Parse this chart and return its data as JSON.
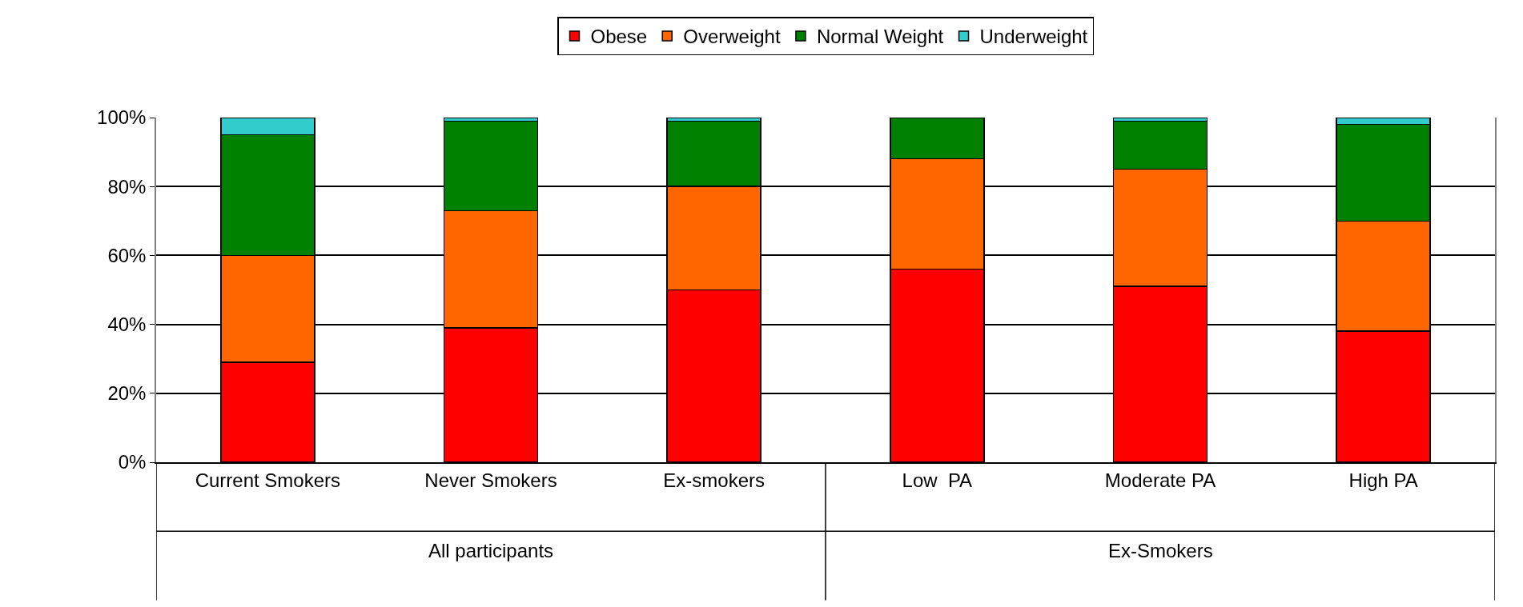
{
  "chart_data": {
    "type": "bar",
    "stacked": true,
    "categories": [
      "Current Smokers",
      "Never Smokers",
      "Ex-smokers",
      "Low  PA",
      "Moderate PA",
      "High PA"
    ],
    "series": [
      {
        "name": "Obese",
        "color": "#ff0000",
        "values": [
          29,
          39,
          50,
          56,
          51,
          38
        ]
      },
      {
        "name": "Overweight",
        "color": "#ff6600",
        "values": [
          31,
          34,
          30,
          32,
          34,
          32
        ]
      },
      {
        "name": "Normal Weight",
        "color": "#008000",
        "values": [
          35,
          26,
          19,
          12,
          14,
          28
        ]
      },
      {
        "name": "Underweight",
        "color": "#33cccc",
        "values": [
          5,
          1,
          1,
          null,
          1,
          2
        ]
      }
    ],
    "ylim": [
      0,
      100
    ],
    "yticks": [
      {
        "value": 0,
        "label": "0%"
      },
      {
        "value": 20,
        "label": "20%"
      },
      {
        "value": 40,
        "label": "40%"
      },
      {
        "value": 60,
        "label": "60%"
      },
      {
        "value": 80,
        "label": "80%"
      },
      {
        "value": 100,
        "label": "100%"
      }
    ],
    "grid": "y",
    "legend": "top",
    "annotations": [
      "All participants",
      "Ex-Smokers"
    ]
  }
}
